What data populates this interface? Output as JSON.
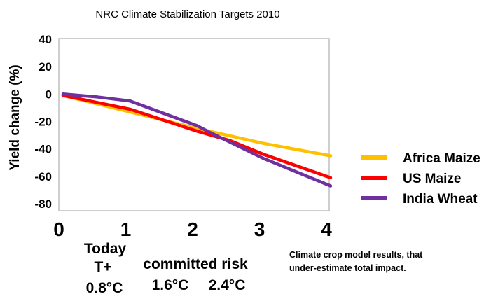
{
  "chart_data": {
    "type": "line",
    "title": "NRC Climate Stabilization Targets  2010",
    "ylabel": "Yield change  (%)",
    "xlabel": "",
    "ylim": [
      -85,
      40
    ],
    "xlim": [
      0,
      4
    ],
    "yticks": [
      "40",
      "20",
      "0",
      "-20",
      "-40",
      "-60",
      "-80"
    ],
    "ytick_values": [
      40,
      20,
      0,
      -20,
      -40,
      -60,
      -80
    ],
    "xticks": [
      "0",
      "1",
      "2",
      "3",
      "4"
    ],
    "xtick_values": [
      0,
      1,
      2,
      3,
      4
    ],
    "grid": false,
    "legend_position": "right",
    "series": [
      {
        "name": "Africa Maize",
        "color": "#FFC000",
        "points": [
          [
            0,
            -1
          ],
          [
            1,
            -13
          ],
          [
            2,
            -25
          ],
          [
            3,
            -36
          ],
          [
            4,
            -45
          ]
        ]
      },
      {
        "name": "US Maize",
        "color": "#FF0000",
        "points": [
          [
            0,
            -1
          ],
          [
            1,
            -11
          ],
          [
            2,
            -27
          ],
          [
            2.5,
            -34
          ],
          [
            3,
            -44
          ],
          [
            4,
            -61
          ]
        ]
      },
      {
        "name": "India Wheat",
        "color": "#7030A0",
        "points": [
          [
            0,
            0
          ],
          [
            0.5,
            -2
          ],
          [
            1,
            -5
          ],
          [
            2,
            -23
          ],
          [
            2.2,
            -28
          ],
          [
            3,
            -47
          ],
          [
            4,
            -67
          ]
        ]
      }
    ],
    "annotations": {
      "today": "Today",
      "tplus": "T+",
      "today_temp": "0.8°C",
      "committed_risk": "committed risk",
      "committed_temp": "1.6°C",
      "risk_temp": "2.4°C",
      "note_line1": "Climate crop model results, that",
      "note_line2": "under-estimate total  impact."
    }
  }
}
